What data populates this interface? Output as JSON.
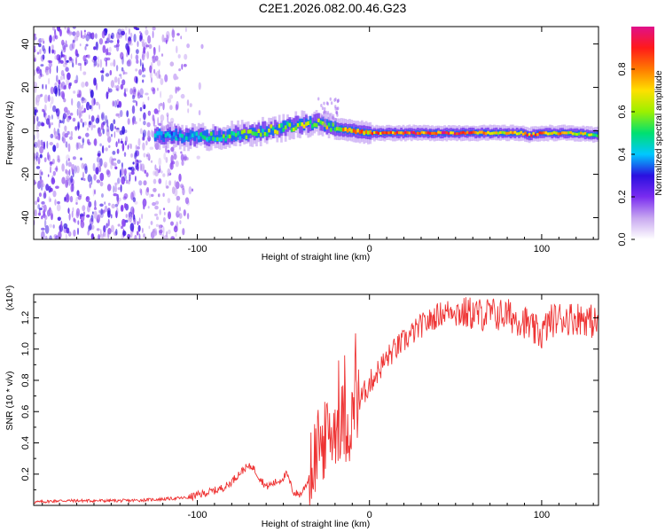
{
  "figure_title": "C2E1.2026.082.00.46.G23",
  "chart_data": [
    {
      "type": "heatmap",
      "title": "C2E1.2026.082.00.46.G23",
      "xlabel": "Height of straight line (km)",
      "ylabel": "Frequency (Hz)",
      "xlim": [
        -195,
        133
      ],
      "ylim": [
        -50,
        48
      ],
      "x_ticks": [
        -100,
        0,
        100
      ],
      "y_ticks": [
        -40,
        -20,
        0,
        20,
        40
      ],
      "x_tick_labels": [
        "-100",
        "0",
        "100"
      ],
      "y_tick_labels": [
        "-40",
        "-20",
        "0",
        "20",
        "40"
      ],
      "colorbar": {
        "label": "Normalized spectral amplitude",
        "range": [
          0,
          1
        ],
        "ticks": [
          0.0,
          0.2,
          0.4,
          0.6,
          0.8
        ],
        "tick_labels": [
          "0.0",
          "0.2",
          "0.4",
          "0.6",
          "0.8"
        ],
        "colormap": [
          "#ffffff",
          "#c8a8f0",
          "#7a2cf0",
          "#2a10e0",
          "#00c8ff",
          "#00e070",
          "#9cf000",
          "#ffe000",
          "#ff7a00",
          "#ff1a1a",
          "#e0108a"
        ]
      },
      "ridge": {
        "x": [
          -120,
          -100,
          -80,
          -60,
          -40,
          -30,
          -20,
          -10,
          0,
          20,
          40,
          60,
          80,
          88,
          92,
          100,
          115,
          133
        ],
        "frequency": [
          -2,
          -3,
          -2,
          0,
          3,
          4,
          1,
          0,
          -1,
          -1,
          -1,
          -1,
          -1,
          -1,
          -2,
          -1,
          -1,
          -2
        ],
        "amplitude": [
          0.4,
          0.45,
          0.55,
          0.6,
          0.65,
          0.6,
          0.7,
          0.75,
          0.8,
          0.9,
          0.9,
          0.85,
          0.7,
          0.8,
          0.85,
          0.8,
          0.75,
          0.6
        ]
      }
    },
    {
      "type": "line",
      "xlabel": "Height of straight line (km)",
      "ylabel": "SNR (10 * v/v)",
      "y_multiplier": "(x10⁴)",
      "xlim": [
        -195,
        133
      ],
      "ylim": [
        0,
        1.35
      ],
      "x_ticks": [
        -100,
        0,
        100
      ],
      "y_ticks": [
        0.2,
        0.4,
        0.6,
        0.8,
        1.0,
        1.2
      ],
      "x_tick_labels": [
        "-100",
        "0",
        "100"
      ],
      "y_tick_labels": [
        "0.2",
        "0.4",
        "0.6",
        "0.8",
        "1.0",
        "1.2"
      ],
      "color": "#ee3333",
      "series": [
        {
          "name": "SNR",
          "x": [
            -195,
            -180,
            -160,
            -140,
            -120,
            -105,
            -95,
            -88,
            -82,
            -76,
            -72,
            -68,
            -64,
            -60,
            -56,
            -52,
            -48,
            -44,
            -40,
            -36,
            -32,
            -28,
            -24,
            -20,
            -16,
            -12,
            -8,
            -4,
            0,
            5,
            10,
            15,
            20,
            25,
            30,
            35,
            40,
            45,
            50,
            55,
            60,
            65,
            70,
            75,
            80,
            85,
            90,
            95,
            100,
            105,
            110,
            115,
            120,
            125,
            133
          ],
          "values": [
            0.02,
            0.03,
            0.03,
            0.03,
            0.04,
            0.05,
            0.08,
            0.1,
            0.13,
            0.2,
            0.24,
            0.25,
            0.18,
            0.12,
            0.14,
            0.16,
            0.2,
            0.08,
            0.07,
            0.15,
            0.3,
            0.38,
            0.45,
            0.5,
            0.55,
            0.5,
            0.62,
            0.7,
            0.78,
            0.86,
            0.94,
            1.0,
            1.05,
            1.1,
            1.15,
            1.18,
            1.22,
            1.24,
            1.26,
            1.25,
            1.25,
            1.24,
            1.25,
            1.24,
            1.24,
            1.22,
            1.2,
            1.14,
            1.12,
            1.2,
            1.22,
            1.22,
            1.22,
            1.22,
            1.18
          ]
        }
      ]
    }
  ]
}
